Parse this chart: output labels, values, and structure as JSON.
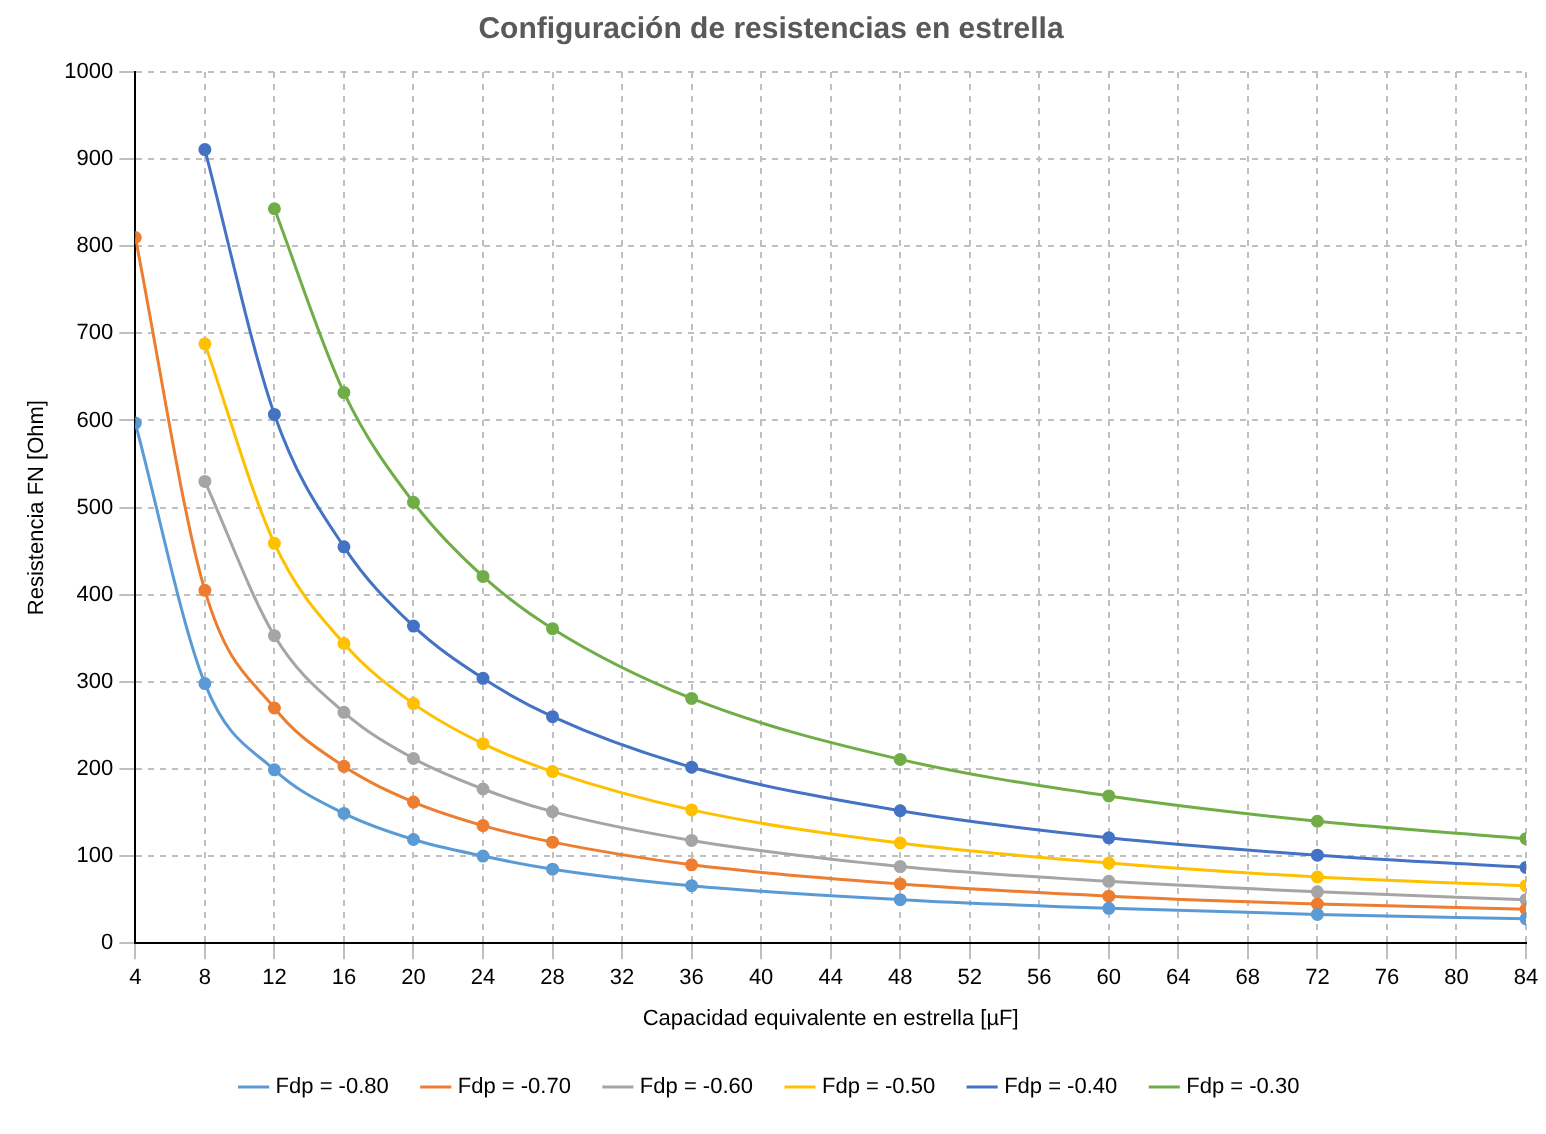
{
  "chart_data": {
    "type": "line",
    "title": "Configuración de resistencias en estrella",
    "xlabel": "Capacidad equivalente en estrella [µF]",
    "ylabel": "Resistencia FN [Ohm]",
    "x": [
      4,
      8,
      12,
      16,
      20,
      24,
      28,
      36,
      48,
      60,
      72,
      84
    ],
    "xlim": [
      4,
      84
    ],
    "xticks": [
      4,
      8,
      12,
      16,
      20,
      24,
      28,
      32,
      36,
      40,
      44,
      48,
      52,
      56,
      60,
      64,
      68,
      72,
      76,
      80,
      84
    ],
    "ylim": [
      0,
      1000
    ],
    "yticks": [
      0,
      100,
      200,
      300,
      400,
      500,
      600,
      700,
      800,
      900,
      1000
    ],
    "grid": true,
    "legend": "bottom",
    "marker": "circle",
    "line_style": "solid",
    "series": [
      {
        "name": "Fdp = -0.80",
        "color": "#5b9bd5",
        "values": [
          597,
          298,
          199,
          149,
          119,
          100,
          85,
          66,
          50,
          40,
          33,
          28
        ]
      },
      {
        "name": "Fdp = -0.70",
        "color": "#ed7d31",
        "values": [
          810,
          405,
          270,
          203,
          162,
          135,
          116,
          90,
          68,
          54,
          45,
          39
        ]
      },
      {
        "name": "Fdp = -0.60",
        "color": "#a5a5a5",
        "values": [
          null,
          530,
          353,
          265,
          212,
          177,
          151,
          118,
          88,
          71,
          59,
          50
        ]
      },
      {
        "name": "Fdp = -0.50",
        "color": "#ffc000",
        "values": [
          null,
          688,
          459,
          344,
          275,
          229,
          197,
          153,
          115,
          92,
          76,
          66
        ]
      },
      {
        "name": "Fdp = -0.40",
        "color": "#4472c4",
        "values": [
          null,
          911,
          607,
          455,
          364,
          304,
          260,
          202,
          152,
          121,
          101,
          87
        ]
      },
      {
        "name": "Fdp = -0.30",
        "color": "#70ad47",
        "values": [
          null,
          null,
          843,
          632,
          506,
          421,
          361,
          281,
          211,
          169,
          140,
          120
        ]
      }
    ]
  }
}
